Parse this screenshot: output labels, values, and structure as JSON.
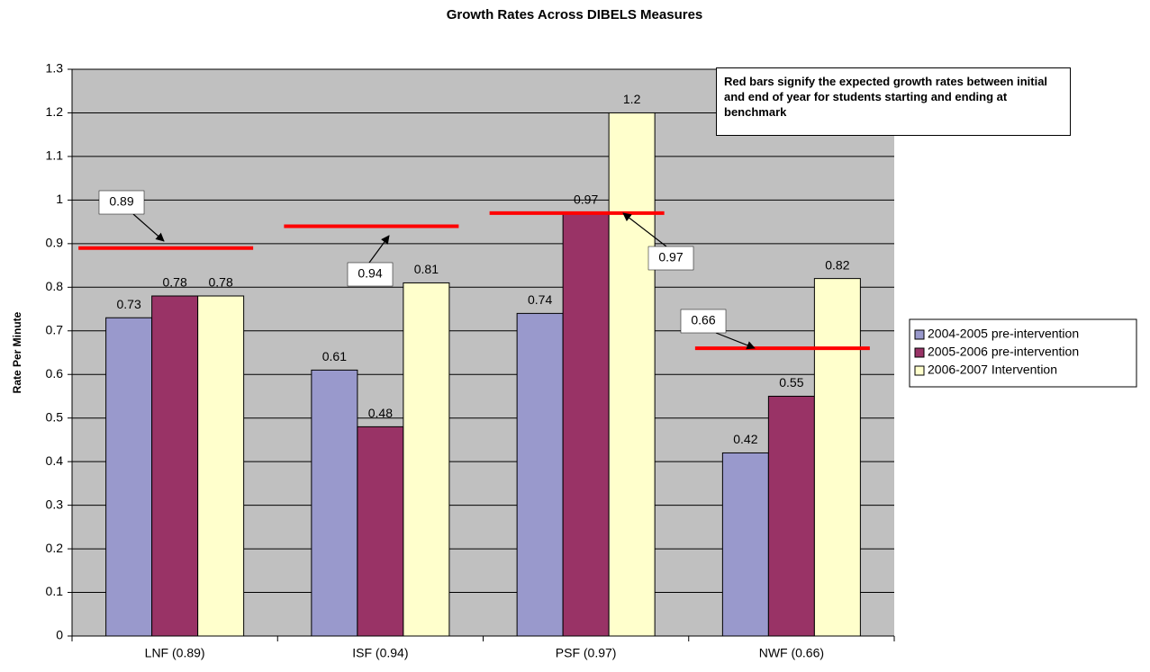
{
  "chart_data": {
    "type": "bar",
    "title": "Growth Rates Across DIBELS Measures",
    "y_label": "Rate Per Minute",
    "annotation": "Red bars signify the expected growth rates between initial and end of year for students starting and ending at benchmark",
    "categories": [
      "LNF (0.89)",
      "ISF (0.94)",
      "PSF  (0.97)",
      "NWF (0.66)"
    ],
    "series": [
      {
        "name": "2004-2005 pre-intervention",
        "color": "#9999cc",
        "values": [
          0.73,
          0.61,
          0.74,
          0.42
        ]
      },
      {
        "name": "2005-2006 pre-intervention",
        "color": "#993366",
        "values": [
          0.78,
          0.48,
          0.97,
          0.55
        ]
      },
      {
        "name": "2006-2007 Intervention",
        "color": "#ffffcc",
        "values": [
          0.78,
          0.81,
          1.2,
          0.82
        ]
      }
    ],
    "benchmarks": {
      "color": "#ff0000",
      "values": [
        0.89,
        0.94,
        0.97,
        0.66
      ]
    },
    "ylim": [
      0,
      1.3
    ],
    "yticks": [
      0,
      0.1,
      0.2,
      0.3,
      0.4,
      0.5,
      0.6,
      0.7,
      0.8,
      0.9,
      1,
      1.1,
      1.2,
      1.3
    ],
    "grid": true,
    "legend": "right"
  }
}
